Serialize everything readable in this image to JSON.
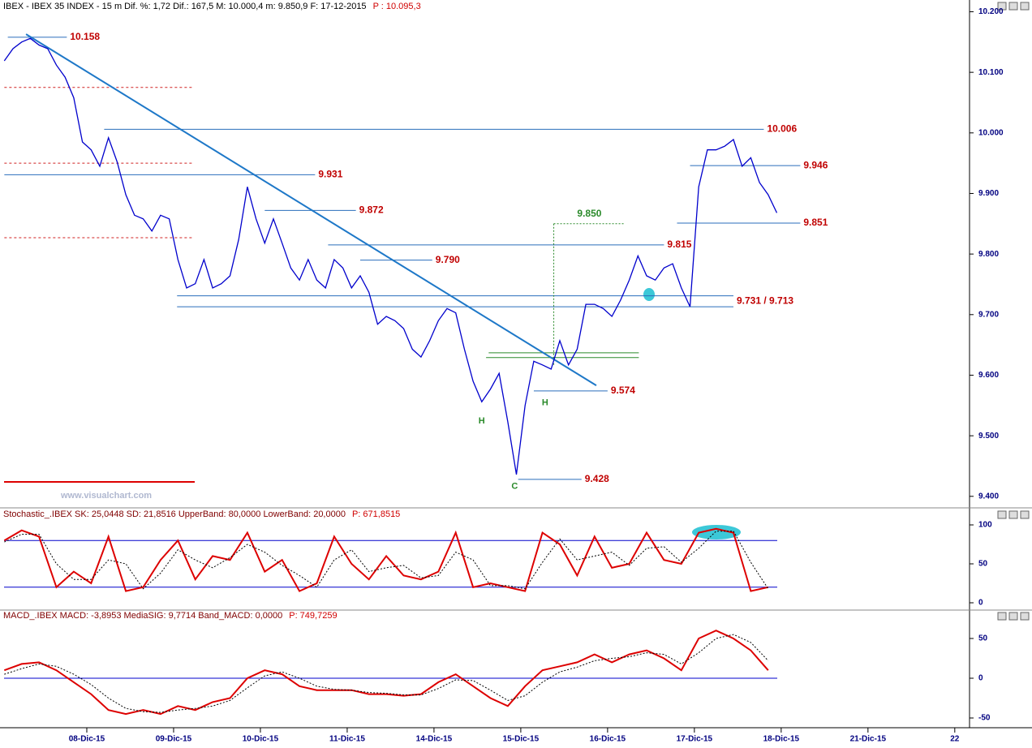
{
  "chart_data": [
    {
      "type": "line",
      "title": "IBEX - IBEX 35 INDEX - 15 m  Dif. %: 1,72  Dif.: 167,5  M: 10.000,4  m: 9.850,9  F: 17-12-2015",
      "title_p": "P : 10.095,3",
      "watermark": "www.visualchart.com",
      "xlim": [
        0,
        11.17
      ],
      "ylim": [
        9389,
        10206
      ],
      "yticks": [
        {
          "value": 9400,
          "label": "9.400"
        },
        {
          "value": 9500,
          "label": "9.500"
        },
        {
          "value": 9600,
          "label": "9.600"
        },
        {
          "value": 9700,
          "label": "9.700"
        },
        {
          "value": 9800,
          "label": "9.800"
        },
        {
          "value": 9900,
          "label": "9.900"
        },
        {
          "value": 10000,
          "label": "10.000"
        },
        {
          "value": 10100,
          "label": "10.100"
        },
        {
          "value": 10200,
          "label": "10.200"
        }
      ],
      "x": [
        0.05,
        0.15,
        0.25,
        0.35,
        0.45,
        0.55,
        0.65,
        0.75,
        0.85,
        0.95,
        1.05,
        1.15,
        1.25,
        1.35,
        1.45,
        1.55,
        1.65,
        1.75,
        1.85,
        1.95,
        2.05,
        2.15,
        2.25,
        2.35,
        2.45,
        2.55,
        2.65,
        2.75,
        2.85,
        2.95,
        3.05,
        3.15,
        3.25,
        3.35,
        3.45,
        3.55,
        3.65,
        3.75,
        3.85,
        3.95,
        4.05,
        4.15,
        4.25,
        4.35,
        4.45,
        4.55,
        4.65,
        4.75,
        4.85,
        4.95,
        5.05,
        5.15,
        5.25,
        5.35,
        5.45,
        5.55,
        5.65,
        5.75,
        5.85,
        5.95,
        6.05,
        6.15,
        6.25,
        6.35,
        6.45,
        6.55,
        6.65,
        6.75,
        6.85,
        6.95,
        7.05,
        7.15,
        7.25,
        7.35,
        7.45,
        7.55,
        7.65,
        7.75,
        7.85,
        7.95,
        8.05,
        8.15,
        8.25,
        8.35,
        8.45,
        8.55,
        8.65,
        8.75,
        8.85,
        8.95
      ],
      "series": [
        {
          "color": "#0000cc",
          "values": [
            10119,
            10139,
            10150,
            10156,
            10145,
            10139,
            10112,
            10092,
            10058,
            9985,
            9972,
            9945,
            9992,
            9952,
            9898,
            9864,
            9858,
            9838,
            9864,
            9858,
            9791,
            9744,
            9751,
            9791,
            9744,
            9751,
            9764,
            9824,
            9911,
            9858,
            9818,
            9858,
            9818,
            9777,
            9757,
            9791,
            9757,
            9744,
            9791,
            9777,
            9744,
            9764,
            9737,
            9684,
            9697,
            9690,
            9677,
            9643,
            9630,
            9657,
            9690,
            9710,
            9703,
            9643,
            9590,
            9556,
            9577,
            9603,
            9523,
            9436,
            9550,
            9623,
            9617,
            9610,
            9657,
            9617,
            9643,
            9717,
            9717,
            9710,
            9697,
            9724,
            9757,
            9797,
            9764,
            9757,
            9777,
            9784,
            9744,
            9713,
            9911,
            9972,
            9972,
            9978,
            9989,
            9945,
            9959,
            9918,
            9898,
            9868
          ]
        }
      ],
      "trendline": {
        "color": "#1e78c8",
        "x": [
          0.3,
          6.87
        ],
        "values": [
          10163,
          9583
        ]
      },
      "levels": [
        {
          "label": "10.158",
          "value": 10158,
          "from": 0.09,
          "to": 0.77,
          "color": "#2a6ebb"
        },
        {
          "label": "10.006",
          "value": 10006,
          "from": 1.2,
          "to": 8.8,
          "color": "#2a6ebb"
        },
        {
          "label": "9.931",
          "value": 9931,
          "from": 0.05,
          "to": 3.63,
          "color": "#2a6ebb"
        },
        {
          "label": "9.872",
          "value": 9872,
          "from": 3.05,
          "to": 4.1,
          "color": "#2a6ebb"
        },
        {
          "label": "9.815",
          "value": 9815,
          "from": 3.78,
          "to": 7.65,
          "color": "#2a6ebb"
        },
        {
          "label": "9.790",
          "value": 9790,
          "from": 4.15,
          "to": 4.98,
          "color": "#2a6ebb"
        },
        {
          "label": "9.946",
          "value": 9946,
          "from": 7.95,
          "to": 9.22,
          "color": "#2a6ebb"
        },
        {
          "label": "9.851",
          "value": 9851,
          "from": 7.8,
          "to": 9.22,
          "color": "#2a6ebb"
        },
        {
          "label": "9.731 / 9.713",
          "value": [
            9731,
            9713
          ],
          "from": 2.04,
          "to": 8.45,
          "color": "#2a6ebb"
        },
        {
          "label": "9.574",
          "value": 9574,
          "from": 6.15,
          "to": 7.0,
          "color": "#2a6ebb"
        },
        {
          "label": "9.428",
          "value": 9428,
          "from": 5.97,
          "to": 6.7,
          "color": "#2a6ebb"
        },
        {
          "value": 9637,
          "from": 5.63,
          "to": 7.36,
          "color": "#2a8a2a"
        },
        {
          "value": 9629,
          "from": 5.6,
          "to": 7.36,
          "color": "#2a8a2a"
        },
        {
          "value": 10075,
          "from": 0.05,
          "to": 2.22,
          "color": "#d02020",
          "dashed": true
        },
        {
          "value": 9950,
          "from": 0.05,
          "to": 2.22,
          "color": "#d02020",
          "dashed": true
        },
        {
          "value": 9827,
          "from": 0.05,
          "to": 2.22,
          "color": "#d02020",
          "dashed": true
        }
      ],
      "projection": {
        "label": "9.850",
        "x": 6.38,
        "to": 7.2,
        "values": [
          9617,
          9850
        ],
        "color": "#2a8a2a"
      },
      "markers": [
        {
          "label": "H",
          "x": 5.55,
          "value": 9524
        },
        {
          "label": "H",
          "x": 6.28,
          "value": 9554
        },
        {
          "label": "C",
          "x": 5.93,
          "value": 9416
        }
      ]
    },
    {
      "type": "line",
      "title": "Stochastic_.IBEX SK: 25,0448  SD: 21,8516  UpperBand: 80,0000  LowerBand: 20,0000",
      "title_p": "P: 671,8515",
      "xlim": [
        0,
        11.17
      ],
      "ylim": [
        -7.3,
        107.3
      ],
      "yticks": [
        0,
        50,
        100
      ],
      "bands": [
        80,
        20
      ],
      "x": [
        0.05,
        0.25,
        0.45,
        0.65,
        0.85,
        1.05,
        1.25,
        1.45,
        1.65,
        1.85,
        2.05,
        2.25,
        2.45,
        2.65,
        2.85,
        3.05,
        3.25,
        3.45,
        3.65,
        3.85,
        4.05,
        4.25,
        4.45,
        4.65,
        4.85,
        5.05,
        5.25,
        5.45,
        5.65,
        5.85,
        6.05,
        6.25,
        6.45,
        6.65,
        6.85,
        7.05,
        7.25,
        7.45,
        7.65,
        7.85,
        8.05,
        8.25,
        8.45,
        8.65,
        8.85
      ],
      "series": [
        {
          "color": "#dd0000",
          "values": [
            80,
            93,
            85,
            20,
            40,
            25,
            85,
            15,
            20,
            55,
            80,
            30,
            60,
            55,
            90,
            40,
            55,
            15,
            25,
            85,
            50,
            30,
            60,
            35,
            30,
            40,
            90,
            20,
            25,
            20,
            15,
            90,
            75,
            35,
            85,
            45,
            50,
            90,
            55,
            50,
            90,
            95,
            90,
            15,
            20
          ]
        },
        {
          "color": "#000000",
          "dashed": true,
          "values": [
            78,
            88,
            88,
            50,
            30,
            30,
            55,
            50,
            18,
            38,
            68,
            55,
            45,
            58,
            75,
            65,
            48,
            35,
            20,
            55,
            68,
            40,
            45,
            48,
            32,
            35,
            65,
            55,
            22,
            22,
            18,
            52,
            82,
            55,
            60,
            65,
            48,
            70,
            72,
            52,
            70,
            92,
            92,
            52,
            18
          ]
        }
      ]
    },
    {
      "type": "line",
      "title": "MACD_.IBEX MACD: -3,8953  MediaSIG: 9,7714  Band_MACD: 0,0000",
      "title_p": "P: 749,7259",
      "xlim": [
        0,
        11.17
      ],
      "ylim": [
        -60.2,
        69.4
      ],
      "yticks": [
        -50,
        0,
        50
      ],
      "bands": [
        0
      ],
      "xticks": [
        {
          "value": 1,
          "label": "08-Dic-15"
        },
        {
          "value": 2,
          "label": "09-Dic-15"
        },
        {
          "value": 3,
          "label": "10-Dic-15"
        },
        {
          "value": 4,
          "label": "11-Dic-15"
        },
        {
          "value": 5,
          "label": "14-Dic-15"
        },
        {
          "value": 6,
          "label": "15-Dic-15"
        },
        {
          "value": 7,
          "label": "16-Dic-15"
        },
        {
          "value": 8,
          "label": "17-Dic-15"
        },
        {
          "value": 9,
          "label": "18-Dic-15"
        },
        {
          "value": 10,
          "label": "21-Dic-15"
        },
        {
          "value": 11,
          "label": "22"
        }
      ],
      "x": [
        0.05,
        0.25,
        0.45,
        0.65,
        0.85,
        1.05,
        1.25,
        1.45,
        1.65,
        1.85,
        2.05,
        2.25,
        2.45,
        2.65,
        2.85,
        3.05,
        3.25,
        3.45,
        3.65,
        3.85,
        4.05,
        4.25,
        4.45,
        4.65,
        4.85,
        5.05,
        5.25,
        5.45,
        5.65,
        5.85,
        6.05,
        6.25,
        6.45,
        6.65,
        6.85,
        7.05,
        7.25,
        7.45,
        7.65,
        7.85,
        8.05,
        8.25,
        8.45,
        8.65,
        8.85
      ],
      "series": [
        {
          "color": "#dd0000",
          "values": [
            10,
            18,
            20,
            10,
            -5,
            -20,
            -40,
            -45,
            -40,
            -45,
            -35,
            -40,
            -30,
            -25,
            0,
            10,
            5,
            -10,
            -15,
            -15,
            -15,
            -20,
            -20,
            -22,
            -20,
            -5,
            5,
            -10,
            -25,
            -35,
            -10,
            10,
            15,
            20,
            30,
            20,
            30,
            35,
            25,
            10,
            50,
            60,
            50,
            35,
            10
          ]
        },
        {
          "color": "#000000",
          "dashed": true,
          "values": [
            5,
            12,
            18,
            15,
            5,
            -8,
            -25,
            -38,
            -42,
            -43,
            -40,
            -38,
            -35,
            -28,
            -12,
            3,
            8,
            0,
            -10,
            -14,
            -15,
            -18,
            -19,
            -21,
            -21,
            -13,
            -2,
            -3,
            -15,
            -28,
            -22,
            -5,
            8,
            14,
            22,
            25,
            27,
            32,
            30,
            18,
            32,
            50,
            55,
            45,
            22
          ]
        }
      ]
    }
  ]
}
